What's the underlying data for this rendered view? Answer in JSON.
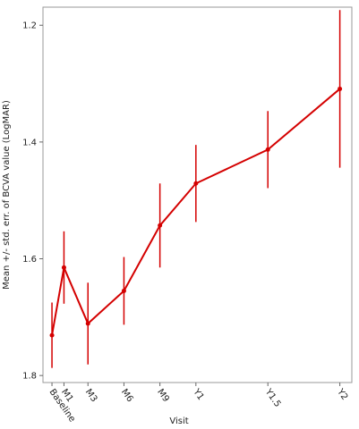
{
  "chart_data": {
    "type": "errorline",
    "x_label": "Visit",
    "y_label": "Mean +/- std. err. of BCVA value (LogMAR)",
    "x": [
      0,
      1,
      3,
      6,
      9,
      12,
      18,
      24
    ],
    "series": [
      {
        "color": "#d40000",
        "values": [
          1.731,
          1.615,
          1.711,
          1.655,
          1.543,
          1.471,
          1.413,
          1.309
        ],
        "errors": [
          0.056,
          0.062,
          0.07,
          0.058,
          0.072,
          0.066,
          0.066,
          0.135
        ]
      }
    ],
    "xlim": [
      -0.75,
      25
    ],
    "xticks": [
      {
        "value": 0,
        "label": "Baseline"
      },
      {
        "value": 1,
        "label": "M1"
      },
      {
        "value": 3,
        "label": "M3"
      },
      {
        "value": 6,
        "label": "M6"
      },
      {
        "value": 9,
        "label": "M9"
      },
      {
        "value": 12,
        "label": "Y1"
      },
      {
        "value": 18,
        "label": "Y1.5"
      },
      {
        "value": 24,
        "label": "Y2"
      }
    ],
    "ylim": [
      1.169,
      1.812
    ],
    "yticks": [
      1.2,
      1.4,
      1.6,
      1.8
    ],
    "y_inverted": true
  }
}
